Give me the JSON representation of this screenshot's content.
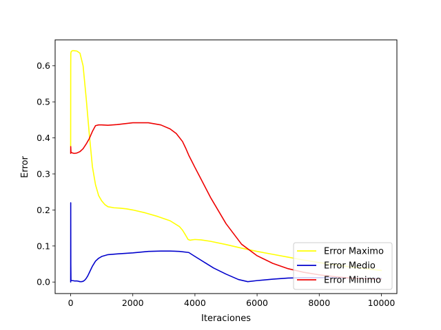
{
  "chart_data": {
    "type": "line",
    "xlabel": "Iteraciones",
    "ylabel": "Error",
    "xlim": [
      -500,
      10500
    ],
    "ylim": [
      -0.032,
      0.672
    ],
    "xticks": [
      0,
      2000,
      4000,
      6000,
      8000,
      10000
    ],
    "yticks": [
      0.0,
      0.1,
      0.2,
      0.3,
      0.4,
      0.5,
      0.6
    ],
    "xtick_labels": [
      "0",
      "2000",
      "4000",
      "6000",
      "8000",
      "10000"
    ],
    "ytick_labels": [
      "0.0",
      "0.1",
      "0.2",
      "0.3",
      "0.4",
      "0.5",
      "0.6"
    ],
    "grid": false,
    "legend_position": "lower-right",
    "series": [
      {
        "name": "Error Maximo",
        "color": "#ffff00",
        "x": [
          0,
          2,
          5,
          20,
          60,
          100,
          200,
          300,
          400,
          500,
          600,
          700,
          800,
          900,
          1000,
          1100,
          1200,
          1400,
          1600,
          1800,
          2000,
          2400,
          2800,
          3200,
          3500,
          3600,
          3700,
          3780,
          3850,
          3900,
          4000,
          4200,
          4500,
          5000,
          5500,
          6000,
          6500,
          7000,
          7500,
          8000,
          8500,
          9000,
          9500,
          10000
        ],
        "y": [
          0.375,
          0.6,
          0.635,
          0.64,
          0.642,
          0.642,
          0.641,
          0.635,
          0.6,
          0.51,
          0.41,
          0.32,
          0.27,
          0.24,
          0.225,
          0.215,
          0.209,
          0.206,
          0.205,
          0.203,
          0.2,
          0.192,
          0.182,
          0.17,
          0.154,
          0.144,
          0.13,
          0.118,
          0.116,
          0.117,
          0.118,
          0.117,
          0.113,
          0.104,
          0.094,
          0.085,
          0.077,
          0.069,
          0.061,
          0.054,
          0.048,
          0.042,
          0.037,
          0.032
        ]
      },
      {
        "name": "Error Medio",
        "color": "#0000cc",
        "x": [
          0,
          2,
          5,
          10,
          60,
          120,
          200,
          260,
          300,
          350,
          400,
          450,
          500,
          550,
          600,
          650,
          700,
          800,
          900,
          1000,
          1200,
          1500,
          2000,
          2500,
          2900,
          3200,
          3500,
          3800,
          4000,
          4300,
          4600,
          5000,
          5400,
          5700,
          6000,
          6500,
          7000,
          7500,
          8000,
          8500,
          9000,
          9500,
          10000
        ],
        "y": [
          0.0,
          0.22,
          0.05,
          0.004,
          0.004,
          0.003,
          0.003,
          0.002,
          0.001,
          0.001,
          0.002,
          0.005,
          0.01,
          0.017,
          0.026,
          0.035,
          0.044,
          0.058,
          0.066,
          0.071,
          0.076,
          0.078,
          0.081,
          0.085,
          0.086,
          0.086,
          0.085,
          0.082,
          0.071,
          0.055,
          0.039,
          0.022,
          0.007,
          0.001,
          0.004,
          0.008,
          0.011,
          0.012,
          0.012,
          0.012,
          0.011,
          0.01,
          0.01
        ]
      },
      {
        "name": "Error Minimo",
        "color": "#ee0000",
        "x": [
          0,
          2,
          10,
          60,
          120,
          200,
          300,
          400,
          500,
          600,
          700,
          800,
          900,
          1000,
          1200,
          1500,
          2000,
          2500,
          2900,
          3200,
          3400,
          3600,
          3700,
          3800,
          3900,
          4000,
          4200,
          4500,
          5000,
          5500,
          6000,
          6500,
          7000,
          7500,
          8000,
          8500,
          9000,
          9500,
          10000
        ],
        "y": [
          0.357,
          0.376,
          0.36,
          0.358,
          0.357,
          0.358,
          0.362,
          0.37,
          0.383,
          0.398,
          0.418,
          0.434,
          0.436,
          0.436,
          0.435,
          0.437,
          0.442,
          0.442,
          0.436,
          0.425,
          0.412,
          0.39,
          0.372,
          0.352,
          0.335,
          0.318,
          0.285,
          0.235,
          0.162,
          0.105,
          0.073,
          0.052,
          0.037,
          0.027,
          0.02,
          0.015,
          0.011,
          0.009,
          0.008
        ]
      }
    ]
  }
}
